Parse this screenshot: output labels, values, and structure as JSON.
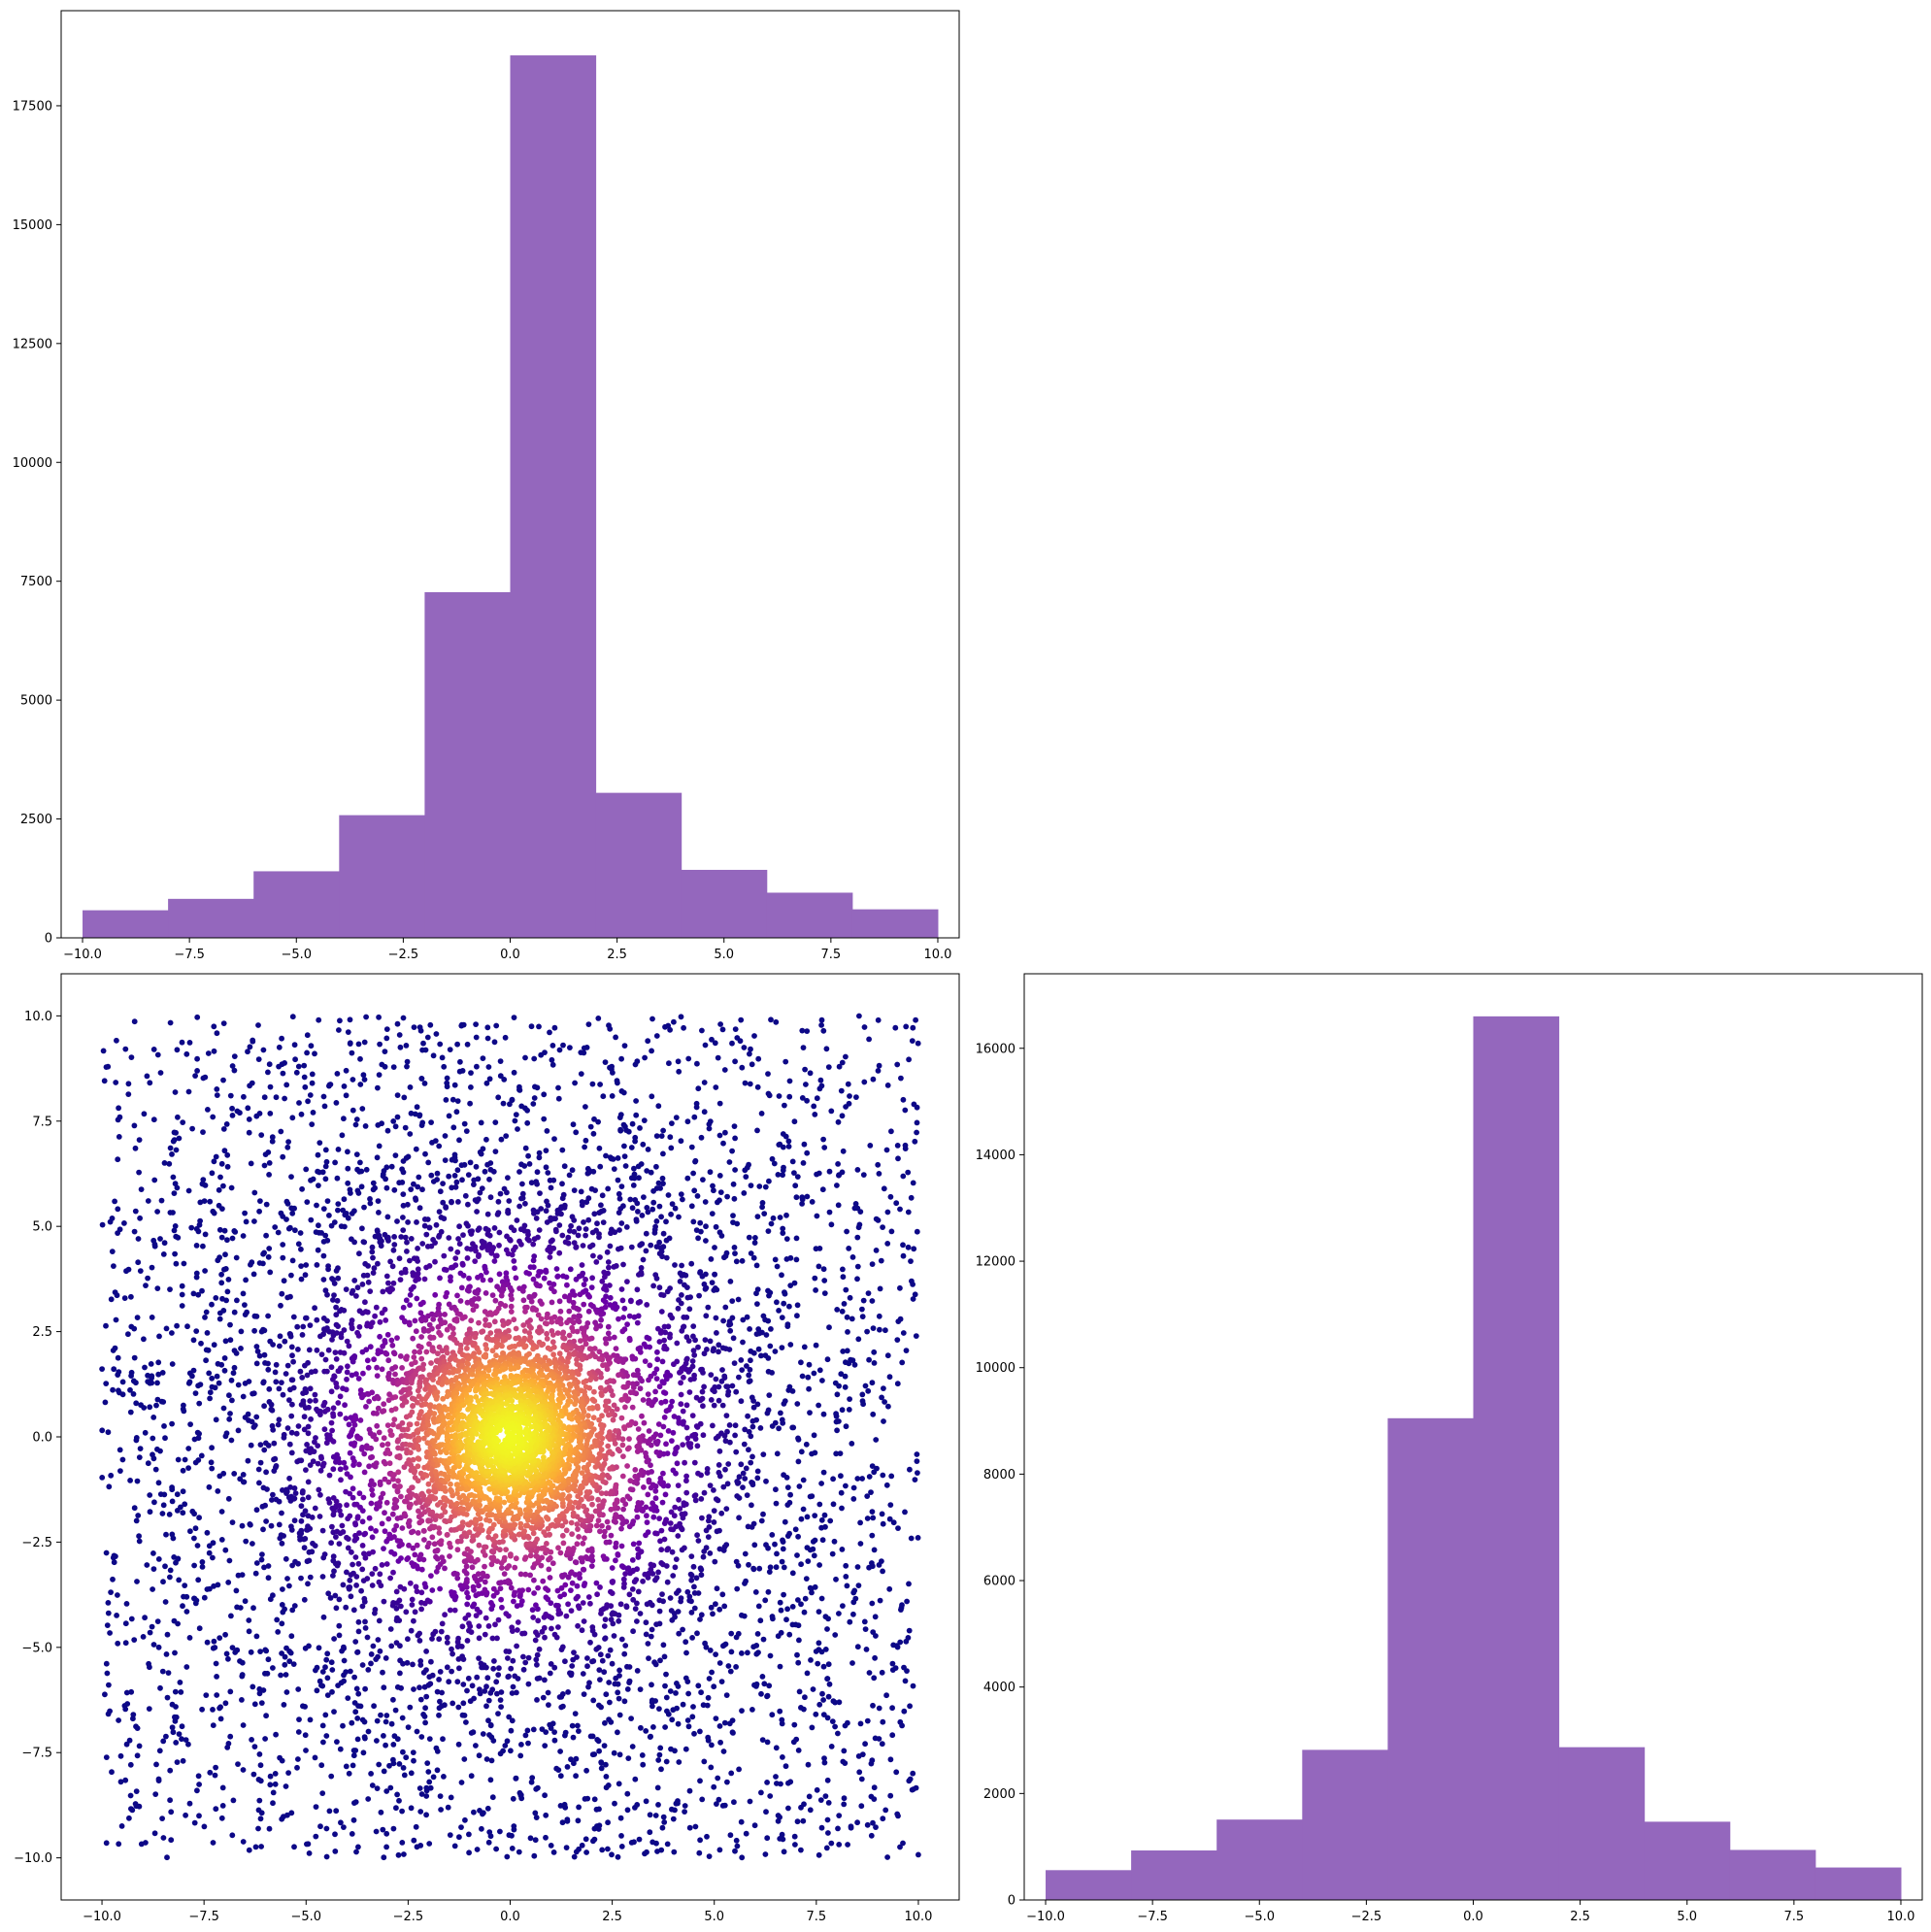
{
  "chart_data": [
    {
      "type": "bar",
      "panel": "top-left",
      "title": "",
      "xlabel": "",
      "ylabel": "",
      "bin_edges": [
        -10,
        -8,
        -6,
        -4,
        -2,
        0,
        2,
        4,
        6,
        8,
        10
      ],
      "values": [
        580,
        820,
        1400,
        2580,
        7270,
        18560,
        3050,
        1430,
        950,
        600
      ],
      "xlim": [
        -10.5,
        10.5
      ],
      "ylim": [
        0,
        19500
      ],
      "xticks": [
        -10,
        -7.5,
        -5,
        -2.5,
        0,
        2.5,
        5,
        7.5,
        10
      ],
      "xtick_labels": [
        "−10.0",
        "−7.5",
        "−5.0",
        "−2.5",
        "0.0",
        "2.5",
        "5.0",
        "7.5",
        "10.0"
      ],
      "yticks": [
        0,
        2500,
        5000,
        7500,
        10000,
        12500,
        15000,
        17500
      ],
      "ytick_labels": [
        "0",
        "2500",
        "5000",
        "7500",
        "10000",
        "12500",
        "15000",
        "17500"
      ],
      "bar_color": "#9467bd",
      "grid": false
    },
    {
      "type": "scatter",
      "panel": "bottom-left",
      "title": "",
      "xlabel": "",
      "ylabel": "",
      "xlim": [
        -11,
        11
      ],
      "ylim": [
        -11,
        11
      ],
      "xticks": [
        -10,
        -7.5,
        -5,
        -2.5,
        0,
        2.5,
        5,
        7.5,
        10
      ],
      "xtick_labels": [
        "−10.0",
        "−7.5",
        "−5.0",
        "−2.5",
        "0.0",
        "2.5",
        "5.0",
        "7.5",
        "10.0"
      ],
      "yticks": [
        -10,
        -7.5,
        -5,
        -2.5,
        0,
        2.5,
        5,
        7.5,
        10
      ],
      "ytick_labels": [
        "−10.0",
        "−7.5",
        "−5.0",
        "−2.5",
        "0.0",
        "2.5",
        "5.0",
        "7.5",
        "10.0"
      ],
      "colormap": "plasma",
      "colormap_stops": [
        "#0d0887",
        "#6a00a8",
        "#b12a90",
        "#e16462",
        "#fca636",
        "#f0f921"
      ],
      "points": {
        "description_of_distribution": "",
        "core": {
          "center": [
            0,
            0
          ],
          "sigma": 1.2
        },
        "mid": {
          "center": [
            0,
            0
          ],
          "sigma": 3.5
        },
        "uniform": {
          "range": [
            -10,
            10
          ]
        }
      },
      "grid": false
    },
    {
      "type": "bar",
      "panel": "bottom-right",
      "title": "",
      "xlabel": "",
      "ylabel": "",
      "bin_edges": [
        -10,
        -8,
        -6,
        -4,
        -2,
        0,
        2,
        4,
        6,
        8,
        10
      ],
      "values": [
        560,
        930,
        1510,
        2820,
        9050,
        16600,
        2870,
        1470,
        940,
        610
      ],
      "xlim": [
        -10.5,
        10.5
      ],
      "ylim": [
        0,
        17400
      ],
      "xticks": [
        -10,
        -7.5,
        -5,
        -2.5,
        0,
        2.5,
        5,
        7.5,
        10
      ],
      "xtick_labels": [
        "−10.0",
        "−7.5",
        "−5.0",
        "−2.5",
        "0.0",
        "2.5",
        "5.0",
        "7.5",
        "10.0"
      ],
      "yticks": [
        0,
        2000,
        4000,
        6000,
        8000,
        10000,
        12000,
        14000,
        16000
      ],
      "ytick_labels": [
        "0",
        "2000",
        "4000",
        "6000",
        "8000",
        "10000",
        "12000",
        "14000",
        "16000"
      ],
      "bar_color": "#9467bd",
      "grid": false
    }
  ]
}
